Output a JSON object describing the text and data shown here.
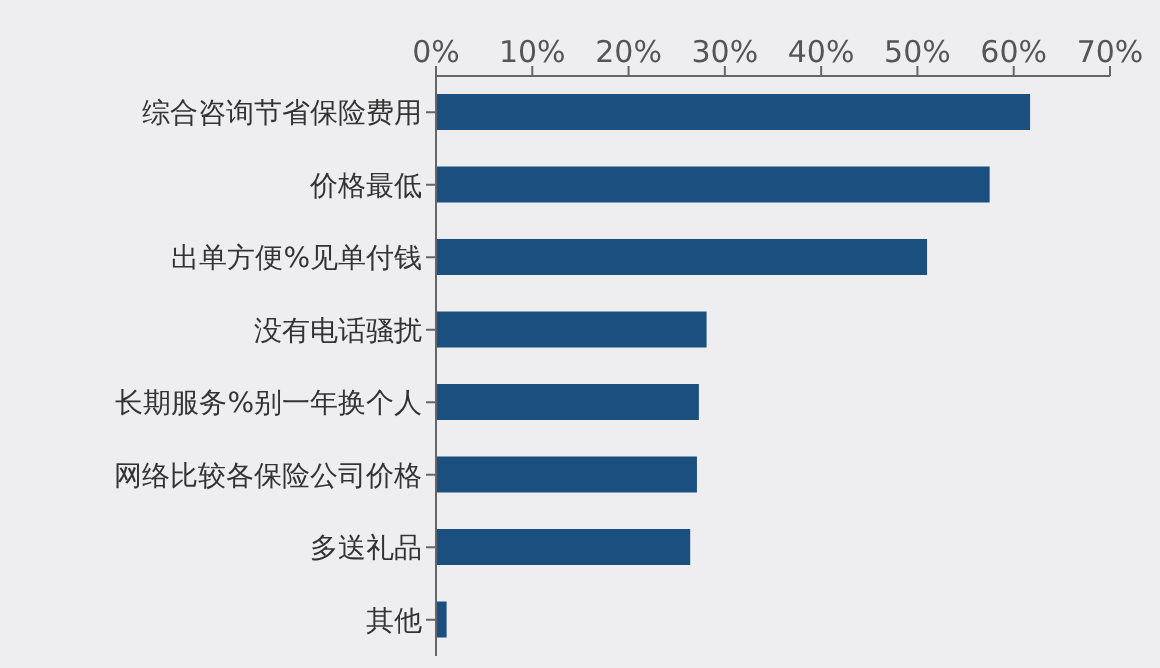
{
  "chart_data": {
    "type": "bar",
    "orientation": "horizontal",
    "categories": [
      "综合咨询节省保险费用",
      "价格最低",
      "出单方便%见单付钱",
      "没有电话骚扰",
      "长期服务%别一年换个人",
      "网络比较各保险公司价格",
      "多送礼品",
      "其他"
    ],
    "values": [
      61.7,
      57.5,
      51,
      28.1,
      27.3,
      27.1,
      26.4,
      1.1
    ],
    "color": "#1b4f7f",
    "xlim": [
      0,
      70
    ],
    "xticks": [
      {
        "value": 0,
        "label": "0%"
      },
      {
        "value": 10,
        "label": "10%"
      },
      {
        "value": 20,
        "label": "20%"
      },
      {
        "value": 30,
        "label": "30%"
      },
      {
        "value": 40,
        "label": "40%"
      },
      {
        "value": 50,
        "label": "50%"
      },
      {
        "value": 60,
        "label": "60%"
      },
      {
        "value": 70,
        "label": "70%"
      }
    ],
    "grid": false
  }
}
